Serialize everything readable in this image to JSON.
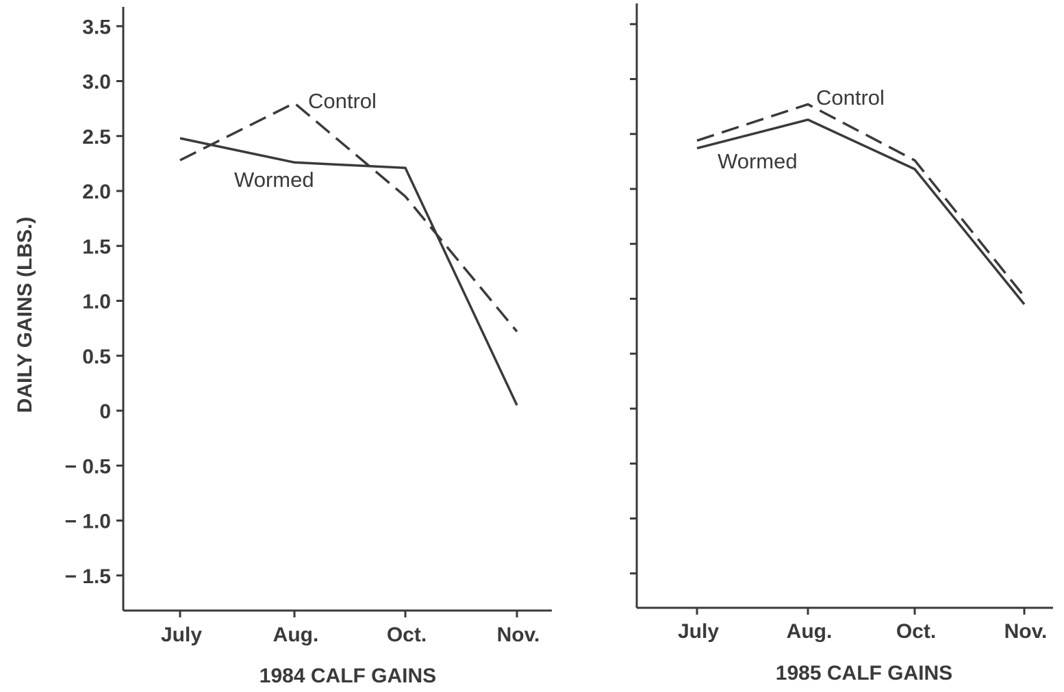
{
  "ylabel": "DAILY GAINS (LBS.)",
  "chart_data": [
    {
      "type": "line",
      "title": "",
      "xlabel": "1984 CALF GAINS",
      "ylabel": "DAILY GAINS (LBS.)",
      "categories": [
        "July",
        "Aug.",
        "Oct.",
        "Nov."
      ],
      "ylim": [
        -1.8,
        3.6
      ],
      "yticks": [
        "3.5",
        "3.0",
        "2.5",
        "2.0",
        "1.5",
        "1.0",
        "0.5",
        "0",
        "− 0.5",
        "− 1.0",
        "− 1.5"
      ],
      "ytick_values": [
        3.5,
        3.0,
        2.5,
        2.0,
        1.5,
        1.0,
        0.5,
        0,
        -0.5,
        -1.0,
        -1.5
      ],
      "grid": false,
      "series": [
        {
          "name": "Control",
          "style": "dashed",
          "values": [
            2.28,
            2.8,
            1.95,
            0.72
          ]
        },
        {
          "name": "Wormed",
          "style": "solid",
          "values": [
            2.48,
            2.26,
            2.21,
            0.05
          ]
        }
      ]
    },
    {
      "type": "line",
      "title": "",
      "xlabel": "1985 CALF GAINS",
      "ylabel": "",
      "categories": [
        "July",
        "Aug.",
        "Oct.",
        "Nov."
      ],
      "ylim": [
        -1.8,
        3.6
      ],
      "yticks": [],
      "ytick_values": [
        3.5,
        3.0,
        2.5,
        2.0,
        1.5,
        1.0,
        0.5,
        0,
        -0.5,
        -1.0,
        -1.5
      ],
      "grid": false,
      "series": [
        {
          "name": "Control",
          "style": "dashed",
          "values": [
            2.44,
            2.77,
            2.26,
            1.02
          ]
        },
        {
          "name": "Wormed",
          "style": "solid",
          "values": [
            2.37,
            2.63,
            2.18,
            0.95
          ]
        }
      ]
    }
  ]
}
